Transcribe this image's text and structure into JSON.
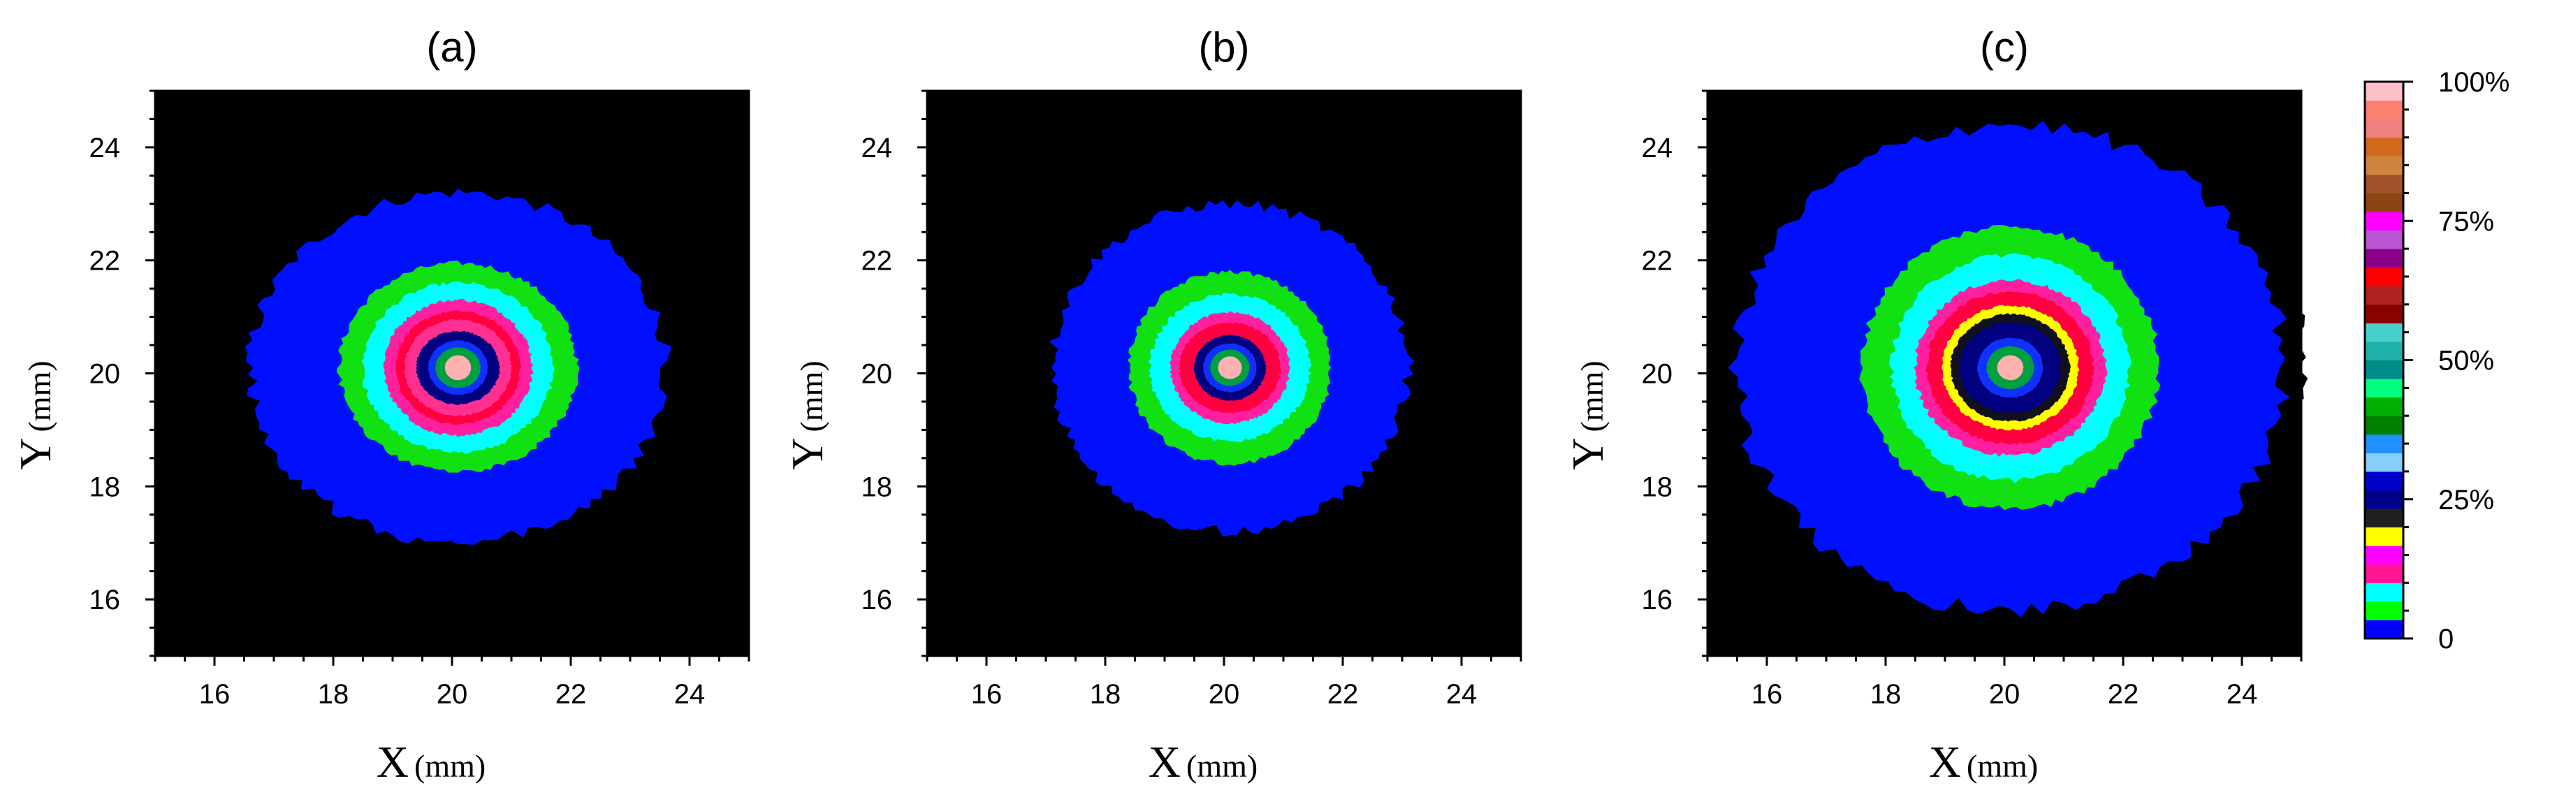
{
  "chart_data": [
    {
      "type": "heatmap",
      "title": "(a)",
      "xlabel": "X",
      "xlabel_unit": "(mm)",
      "ylabel": "Y",
      "ylabel_unit": "(mm)",
      "xlim": [
        15,
        25
      ],
      "ylim": [
        15,
        25
      ],
      "xticks": [
        "16",
        "18",
        "20",
        "22",
        "24"
      ],
      "yticks": [
        "16",
        "18",
        "20",
        "22",
        "24"
      ],
      "center": [
        20.1,
        20.1
      ],
      "contours": [
        {
          "level": "0",
          "rx": 3.8,
          "ry": 3.4
        },
        {
          "level": "blue",
          "rx": 3.5,
          "ry": 3.1
        },
        {
          "level": "green",
          "rx": 2.0,
          "ry": 1.85
        },
        {
          "level": "cyan",
          "rx": 1.6,
          "ry": 1.5
        },
        {
          "level": "magenta",
          "rx": 1.25,
          "ry": 1.2
        },
        {
          "level": "red",
          "rx": 1.05,
          "ry": 1.0
        },
        {
          "level": "pink",
          "rx": 0.9,
          "ry": 0.85
        },
        {
          "level": "navy",
          "rx": 0.7,
          "ry": 0.65
        },
        {
          "level": "blue-center",
          "rx": 0.5,
          "ry": 0.48
        },
        {
          "level": "green-center",
          "rx": 0.38,
          "ry": 0.36
        },
        {
          "level": "peak",
          "rx": 0.22,
          "ry": 0.22
        }
      ]
    },
    {
      "type": "heatmap",
      "title": "(b)",
      "xlabel": "X",
      "xlabel_unit": "(mm)",
      "ylabel": "Y",
      "ylabel_unit": "(mm)",
      "xlim": [
        15,
        25
      ],
      "ylim": [
        15,
        25
      ],
      "xticks": [
        "16",
        "18",
        "20",
        "22",
        "24"
      ],
      "yticks": [
        "16",
        "18",
        "20",
        "22",
        "24"
      ],
      "center": [
        20.1,
        20.1
      ],
      "contours": [
        {
          "level": "0",
          "rx": 3.3,
          "ry": 3.15
        },
        {
          "level": "blue",
          "rx": 3.0,
          "ry": 2.9
        },
        {
          "level": "green",
          "rx": 1.7,
          "ry": 1.7
        },
        {
          "level": "cyan",
          "rx": 1.35,
          "ry": 1.3
        },
        {
          "level": "magenta",
          "rx": 1.0,
          "ry": 0.98
        },
        {
          "level": "red",
          "rx": 0.85,
          "ry": 0.8
        },
        {
          "level": "navy",
          "rx": 0.6,
          "ry": 0.58
        },
        {
          "level": "blue-center",
          "rx": 0.45,
          "ry": 0.43
        },
        {
          "level": "green-center",
          "rx": 0.33,
          "ry": 0.32
        },
        {
          "level": "peak",
          "rx": 0.2,
          "ry": 0.2
        }
      ]
    },
    {
      "type": "heatmap",
      "title": "(c)",
      "xlabel": "X",
      "xlabel_unit": "(mm)",
      "ylabel": "Y",
      "ylabel_unit": "(mm)",
      "xlim": [
        15,
        25
      ],
      "ylim": [
        15,
        25
      ],
      "xticks": [
        "16",
        "18",
        "20",
        "22",
        "24"
      ],
      "yticks": [
        "16",
        "18",
        "20",
        "22",
        "24"
      ],
      "center": [
        20.1,
        20.1
      ],
      "contours": [
        {
          "level": "0",
          "rx": 4.9,
          "ry": 4.6
        },
        {
          "level": "blue",
          "rx": 4.6,
          "ry": 4.3
        },
        {
          "level": "green",
          "rx": 2.5,
          "ry": 2.5
        },
        {
          "level": "cyan",
          "rx": 2.0,
          "ry": 2.0
        },
        {
          "level": "magenta",
          "rx": 1.6,
          "ry": 1.55
        },
        {
          "level": "red",
          "rx": 1.4,
          "ry": 1.35
        },
        {
          "level": "yellow",
          "rx": 1.15,
          "ry": 1.1
        },
        {
          "level": "dark",
          "rx": 1.0,
          "ry": 0.95
        },
        {
          "level": "navy",
          "rx": 0.85,
          "ry": 0.8
        },
        {
          "level": "blue-center",
          "rx": 0.55,
          "ry": 0.53
        },
        {
          "level": "green-center",
          "rx": 0.4,
          "ry": 0.38
        },
        {
          "level": "peak",
          "rx": 0.22,
          "ry": 0.22
        }
      ]
    }
  ],
  "colorbar": {
    "ticks": [
      "100%",
      "75%",
      "50%",
      "25%",
      "0"
    ],
    "tick_values": [
      1.0,
      0.75,
      0.5,
      0.25,
      0.0
    ],
    "colors": [
      "#0000ff",
      "#00ff00",
      "#00ffff",
      "#ff1493",
      "#ff00ff",
      "#ffff00",
      "#202020",
      "#00008b",
      "#0000cd",
      "#87cefa",
      "#1e90ff",
      "#008000",
      "#00b000",
      "#00ff7f",
      "#008b8b",
      "#20b2aa",
      "#48d1cc",
      "#8b0000",
      "#b22222",
      "#ff0000",
      "#8b008b",
      "#ba55d3",
      "#ff00ff",
      "#8b4513",
      "#a0522d",
      "#cd853f",
      "#d2691e",
      "#f08080",
      "#fa8072",
      "#ffc0cb"
    ]
  },
  "colors": {
    "background": "#000000",
    "0": "#000000",
    "blue": "#0010ff",
    "green": "#11e011",
    "cyan": "#00ffff",
    "magenta": "#ff1f9f",
    "red": "#ff0040",
    "pink": "#ff3090",
    "yellow": "#ffff00",
    "dark": "#101020",
    "navy": "#000080",
    "blue-center": "#1030ff",
    "green-center": "#00a040",
    "peak": "#ffb0b0"
  }
}
